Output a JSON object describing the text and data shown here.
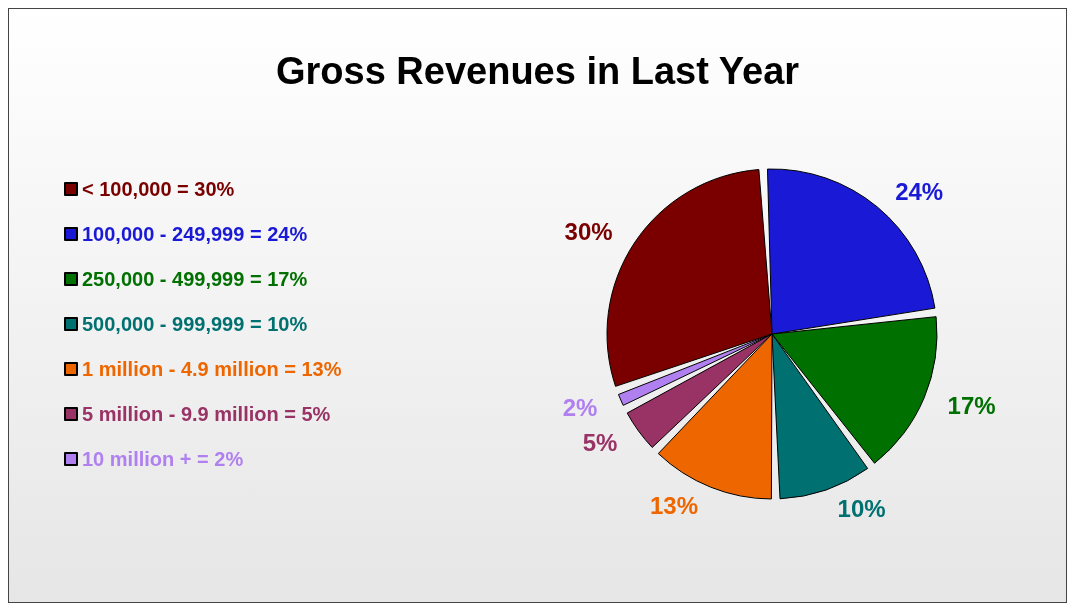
{
  "chart_data": {
    "type": "pie",
    "title": "Gross Revenues in Last Year",
    "categories": [
      "< 100,000 = 30%",
      "100,000 - 249,999 = 24%",
      "250,000 - 499,999 = 17%",
      "500,000 - 999,999 = 10%",
      "1 million - 4.9 million = 13%",
      "5 million - 9.9 million = 5%",
      "10 million + = 2%"
    ],
    "values": [
      30,
      24,
      17,
      10,
      13,
      5,
      2
    ],
    "value_labels": [
      "30%",
      "24%",
      "17%",
      "10%",
      "13%",
      "5%",
      "2%"
    ],
    "colors": [
      "#7a0000",
      "#1a1ad6",
      "#007000",
      "#007070",
      "#ee6600",
      "#993366",
      "#b080f0"
    ],
    "legend": "left"
  }
}
